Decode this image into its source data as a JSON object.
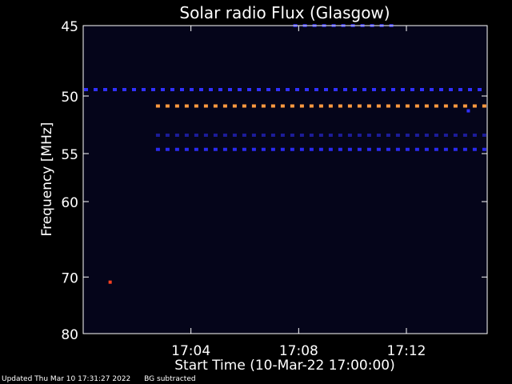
{
  "chart_data": {
    "type": "heatmap",
    "title": "Solar radio Flux (Glasgow)",
    "xlabel": "Start Time (10-Mar-22 17:00:00)",
    "ylabel": "Frequency [MHz]",
    "x_unit": "minutes after 17:00:00",
    "xlim": [
      0,
      15
    ],
    "ylim": [
      45,
      80
    ],
    "y_ticks": [
      {
        "value": 45,
        "label": "45"
      },
      {
        "value": 50,
        "label": "50"
      },
      {
        "value": 55,
        "label": "55"
      },
      {
        "value": 60,
        "label": "60"
      },
      {
        "value": 70,
        "label": "70"
      },
      {
        "value": 80,
        "label": "80"
      }
    ],
    "x_ticks": [
      {
        "value": 4,
        "label": "17:04"
      },
      {
        "value": 8,
        "label": "17:08"
      },
      {
        "value": 12,
        "label": "17:12"
      }
    ],
    "bands": [
      {
        "freq": 45,
        "start": 7.8,
        "end": 11.6,
        "color": "#2a2ad0"
      },
      {
        "freq": 49.5,
        "start": 0,
        "end": 15,
        "color": "#3030ff"
      },
      {
        "freq": 50.8,
        "start": 2.7,
        "end": 15,
        "color": "#ff9a40"
      },
      {
        "freq": 53.3,
        "start": 2.7,
        "end": 15,
        "color": "#1c1c9a"
      },
      {
        "freq": 54.6,
        "start": 2.7,
        "end": 15,
        "color": "#2a2aee"
      }
    ],
    "spots": [
      {
        "time": 1.0,
        "freq": 70.8,
        "color": "#ff4020"
      },
      {
        "time": 14.3,
        "freq": 51.2,
        "color": "#3030ff"
      }
    ],
    "background": "#05051a",
    "frame_color": "#ffffff"
  },
  "footer": {
    "updated": "Updated Thu Mar 10 17:31:27 2022",
    "note": "BG subtracted"
  }
}
